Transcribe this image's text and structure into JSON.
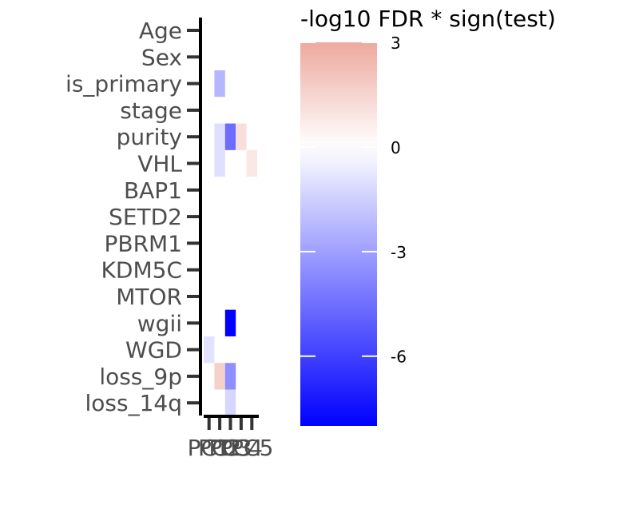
{
  "chart_data": {
    "type": "heatmap",
    "title": "",
    "xlabel": "",
    "ylabel": "",
    "rows": [
      "Age",
      "Sex",
      "is_primary",
      "stage",
      "purity",
      "VHL",
      "BAP1",
      "SETD2",
      "PBRM1",
      "KDM5C",
      "MTOR",
      "wgii",
      "WGD",
      "loss_9p",
      "loss_14q"
    ],
    "columns": [
      "PC1",
      "PC2",
      "PC3",
      "PC4",
      "PC5"
    ],
    "x_tick_labels": [
      "PC1",
      "PC2",
      "PC3",
      "PC4",
      "PC5"
    ],
    "cells": [
      {
        "row": "is_primary",
        "col": "PC2",
        "value": -2.3
      },
      {
        "row": "purity",
        "col": "PC2",
        "value": -1.0
      },
      {
        "row": "purity",
        "col": "PC3",
        "value": -4.6
      },
      {
        "row": "purity",
        "col": "PC4",
        "value": 1.1
      },
      {
        "row": "VHL",
        "col": "PC2",
        "value": -1.0
      },
      {
        "row": "VHL",
        "col": "PC5",
        "value": 0.8
      },
      {
        "row": "wgii",
        "col": "PC3",
        "value": -8.0
      },
      {
        "row": "WGD",
        "col": "PC1",
        "value": -0.9
      },
      {
        "row": "loss_9p",
        "col": "PC2",
        "value": 1.6
      },
      {
        "row": "loss_9p",
        "col": "PC3",
        "value": -3.5
      },
      {
        "row": "loss_14q",
        "col": "PC3",
        "value": -1.3
      }
    ],
    "legend": {
      "title": "-log10 FDR * sign(test)",
      "breaks": [
        3,
        0,
        -3,
        -6
      ],
      "break_labels": [
        "3",
        "0",
        "-3",
        "-6"
      ],
      "range": [
        -8.0,
        3.0
      ],
      "placement": "right"
    },
    "colors": {
      "low": "#0000ff",
      "mid": "#ffffff",
      "high": "#eea99e"
    }
  }
}
